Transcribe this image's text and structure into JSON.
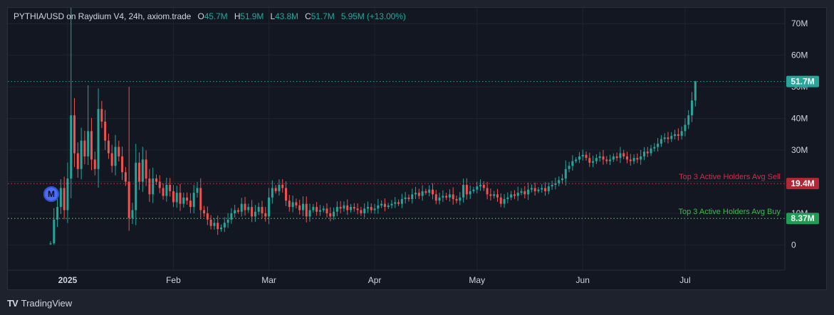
{
  "legend": {
    "symbol": "PYTHIA/USD on Raydium V4, 24h, axiom.trade",
    "o_label": "O",
    "o_value": "45.7M",
    "h_label": "H",
    "h_value": "51.9M",
    "l_label": "L",
    "l_value": "43.8M",
    "c_label": "C",
    "c_value": "51.7M",
    "change": "5.95M (+13.00%)"
  },
  "marker": {
    "label": "M"
  },
  "footer": {
    "logo": "TV",
    "brand": "TradingView"
  },
  "colors": {
    "up": "#26a69a",
    "down": "#ef5350",
    "sell_line": "#cc2f4c",
    "buy_line": "#3fb950",
    "price_badge": "#26a69a",
    "sell_badge": "#b22835",
    "buy_badge": "#1f9d55"
  },
  "chart_data": {
    "type": "candlestick",
    "title": "PYTHIA/USD on Raydium V4, 24h, axiom.trade",
    "xlabel": "",
    "ylabel": "",
    "ylim": [
      -8,
      75
    ],
    "y_ticks": [
      "0",
      "10M",
      "20M",
      "30M",
      "40M",
      "50M",
      "60M",
      "70M"
    ],
    "y_tick_values": [
      0,
      10,
      20,
      30,
      40,
      50,
      60,
      70
    ],
    "x_ticks": [
      {
        "label": "2025",
        "day": 5
      },
      {
        "label": "Feb",
        "day": 36
      },
      {
        "label": "Mar",
        "day": 64
      },
      {
        "label": "Apr",
        "day": 95
      },
      {
        "label": "May",
        "day": 125
      },
      {
        "label": "Jun",
        "day": 156
      },
      {
        "label": "Jul",
        "day": 186
      }
    ],
    "grid": true,
    "last_price": "51.7M",
    "last_price_value": 51.7,
    "lines": [
      {
        "label": "Top 3 Active Holders Avg Sell",
        "value": 19.4,
        "badge": "19.4M"
      },
      {
        "label": "Top 3 Active Holders Avg Buy",
        "value": 8.37,
        "badge": "8.37M"
      }
    ],
    "close": [
      0.5,
      8,
      12,
      18,
      11,
      21,
      41,
      29,
      24,
      33,
      28,
      36,
      27,
      24,
      43,
      39,
      33,
      29,
      25,
      31,
      28,
      23,
      20,
      8.5,
      11,
      26,
      20,
      27,
      21,
      16,
      21,
      20,
      18,
      15.5,
      19,
      17,
      13.5,
      16.5,
      13,
      15,
      14,
      12,
      16.5,
      18,
      11,
      10,
      8,
      6,
      7,
      5,
      5.5,
      7,
      8,
      10,
      11,
      10.5,
      13,
      11,
      12,
      9,
      10.5,
      12,
      10,
      9,
      15,
      18,
      17,
      19,
      18,
      14,
      12,
      13.5,
      12.5,
      11,
      13,
      9,
      11,
      12,
      10.5,
      11,
      11.5,
      10,
      9,
      10.5,
      12,
      11.5,
      12.5,
      11,
      12,
      11.5,
      11,
      10,
      11.5,
      12,
      11,
      11.5,
      12.5,
      13,
      12,
      12.5,
      13,
      13.5,
      13,
      14.5,
      15,
      14.5,
      16,
      16.5,
      15.5,
      17,
      16.5,
      17.5,
      16,
      14,
      15,
      15.5,
      15,
      16,
      14.5,
      14,
      15,
      19,
      16,
      17,
      17.5,
      18.5,
      19,
      18,
      16,
      15.5,
      16,
      15,
      13,
      14.5,
      15,
      16,
      15.5,
      16.5,
      17,
      16,
      17.5,
      18,
      17,
      17.5,
      18,
      17,
      18.5,
      19,
      19.5,
      20.5,
      21,
      24,
      25,
      26.5,
      27,
      28,
      28.5,
      27.5,
      26,
      26.5,
      27.5,
      28,
      27,
      26.5,
      27,
      28,
      27.5,
      29,
      28,
      27,
      26.5,
      27.5,
      27,
      28,
      29.5,
      29,
      30.5,
      31,
      32,
      33.5,
      34,
      33.5,
      34.5,
      35,
      34.5,
      36,
      38,
      41,
      45.7,
      51.7
    ],
    "last_candle": {
      "open": 45.7,
      "high": 51.9,
      "low": 43.8,
      "close": 51.7
    }
  }
}
